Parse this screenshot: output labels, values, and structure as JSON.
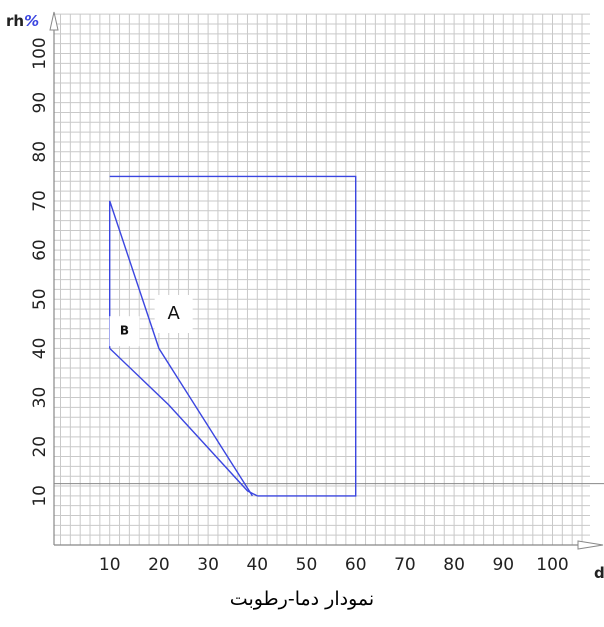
{
  "chart_data": {
    "type": "line",
    "title": "",
    "caption": "نمودار دما-رطوبت",
    "xlabel": "d",
    "ylabel_main": "rh",
    "ylabel_unit": "%",
    "xlim": [
      0,
      106
    ],
    "ylim": [
      0,
      108
    ],
    "x_ticks": [
      "10",
      "20",
      "30",
      "40",
      "50",
      "60",
      "70",
      "80",
      "90",
      "100"
    ],
    "y_ticks": [
      "10",
      "20",
      "30",
      "40",
      "50",
      "60",
      "70",
      "80",
      "90",
      "100"
    ],
    "grid": true,
    "grid_minor_step": 2,
    "series": [
      {
        "color": "#3b46e0",
        "points": [
          [
            10,
            75
          ],
          [
            60,
            75
          ],
          [
            60,
            10
          ],
          [
            40,
            10
          ]
        ]
      },
      {
        "color": "#3b46e0",
        "points": [
          [
            10,
            40
          ],
          [
            10,
            70
          ],
          [
            20,
            40
          ],
          [
            39,
            10
          ]
        ]
      },
      {
        "color": "#3b46e0",
        "points": [
          [
            10,
            40
          ],
          [
            22,
            28.5
          ],
          [
            38,
            11
          ],
          [
            40,
            10
          ]
        ]
      }
    ],
    "reference_lines": [
      {
        "axis": "y",
        "value": 12.5,
        "color": "#888888"
      }
    ],
    "annotations": [
      {
        "text": "A",
        "x": 23,
        "y": 47,
        "size": "large"
      },
      {
        "text": "B",
        "x": 13,
        "y": 43.5,
        "size": "small"
      }
    ]
  }
}
